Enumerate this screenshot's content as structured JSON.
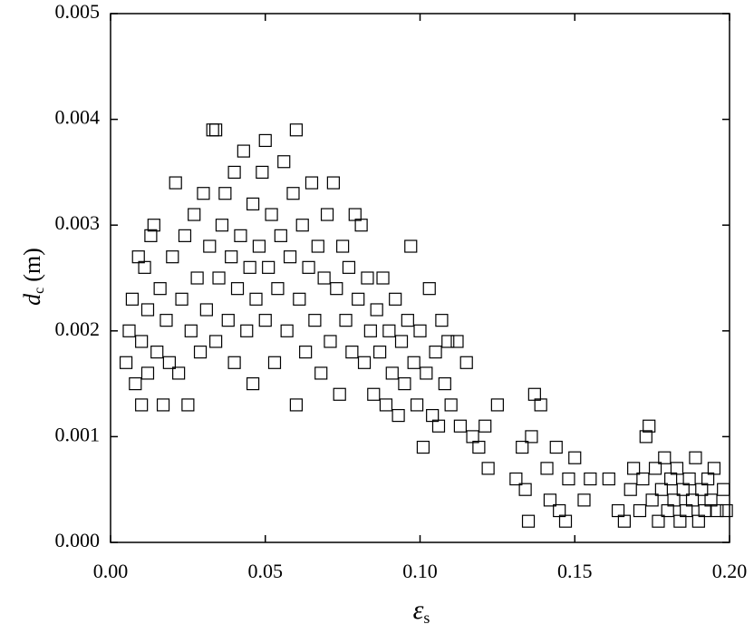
{
  "chart_data": {
    "type": "scatter",
    "xlabel": {
      "main": "ε",
      "sub": "s"
    },
    "ylabel": {
      "main": "d",
      "sub": "c",
      "unit": "(m)"
    },
    "xlim": [
      0,
      0.2
    ],
    "ylim": [
      0,
      0.005
    ],
    "xticks": [
      {
        "value": 0,
        "label": "0.00"
      },
      {
        "value": 0.05,
        "label": "0.05"
      },
      {
        "value": 0.1,
        "label": "0.10"
      },
      {
        "value": 0.15,
        "label": "0.15"
      },
      {
        "value": 0.2,
        "label": "0.20"
      }
    ],
    "yticks": [
      {
        "value": 0,
        "label": "0.000"
      },
      {
        "value": 0.001,
        "label": "0.001"
      },
      {
        "value": 0.002,
        "label": "0.002"
      },
      {
        "value": 0.003,
        "label": "0.003"
      },
      {
        "value": 0.004,
        "label": "0.004"
      },
      {
        "value": 0.005,
        "label": "0.005"
      }
    ],
    "marker_color": "#000000",
    "x": [
      0.005,
      0.006,
      0.007,
      0.008,
      0.009,
      0.01,
      0.01,
      0.011,
      0.012,
      0.012,
      0.013,
      0.014,
      0.015,
      0.016,
      0.017,
      0.018,
      0.019,
      0.02,
      0.021,
      0.022,
      0.023,
      0.024,
      0.025,
      0.026,
      0.027,
      0.028,
      0.029,
      0.03,
      0.031,
      0.032,
      0.033,
      0.034,
      0.034,
      0.035,
      0.036,
      0.037,
      0.038,
      0.039,
      0.04,
      0.04,
      0.041,
      0.042,
      0.043,
      0.044,
      0.045,
      0.046,
      0.046,
      0.047,
      0.048,
      0.049,
      0.05,
      0.05,
      0.051,
      0.052,
      0.053,
      0.054,
      0.055,
      0.056,
      0.057,
      0.058,
      0.059,
      0.06,
      0.06,
      0.061,
      0.062,
      0.063,
      0.064,
      0.065,
      0.066,
      0.067,
      0.068,
      0.069,
      0.07,
      0.071,
      0.072,
      0.073,
      0.074,
      0.075,
      0.076,
      0.077,
      0.078,
      0.079,
      0.08,
      0.081,
      0.082,
      0.083,
      0.084,
      0.085,
      0.086,
      0.087,
      0.088,
      0.089,
      0.09,
      0.091,
      0.092,
      0.093,
      0.094,
      0.095,
      0.096,
      0.097,
      0.098,
      0.099,
      0.1,
      0.101,
      0.102,
      0.103,
      0.104,
      0.105,
      0.106,
      0.107,
      0.108,
      0.109,
      0.11,
      0.112,
      0.113,
      0.115,
      0.117,
      0.119,
      0.121,
      0.122,
      0.125,
      0.131,
      0.133,
      0.134,
      0.135,
      0.136,
      0.137,
      0.139,
      0.141,
      0.142,
      0.144,
      0.145,
      0.147,
      0.148,
      0.15,
      0.153,
      0.155,
      0.161,
      0.164,
      0.166,
      0.168,
      0.169,
      0.171,
      0.172,
      0.173,
      0.174,
      0.175,
      0.176,
      0.177,
      0.178,
      0.179,
      0.18,
      0.181,
      0.182,
      0.183,
      0.184,
      0.185,
      0.186,
      0.187,
      0.188,
      0.189,
      0.19,
      0.191,
      0.192,
      0.193,
      0.194,
      0.195,
      0.196,
      0.198,
      0.199
    ],
    "values": [
      0.0017,
      0.002,
      0.0023,
      0.0015,
      0.0027,
      0.0013,
      0.0019,
      0.0026,
      0.0016,
      0.0022,
      0.0029,
      0.003,
      0.0018,
      0.0024,
      0.0013,
      0.0021,
      0.0017,
      0.0027,
      0.0034,
      0.0016,
      0.0023,
      0.0029,
      0.0013,
      0.002,
      0.0031,
      0.0025,
      0.0018,
      0.0033,
      0.0022,
      0.0028,
      0.0039,
      0.0039,
      0.0019,
      0.0025,
      0.003,
      0.0033,
      0.0021,
      0.0027,
      0.0035,
      0.0017,
      0.0024,
      0.0029,
      0.0037,
      0.002,
      0.0026,
      0.0032,
      0.0015,
      0.0023,
      0.0028,
      0.0035,
      0.0038,
      0.0021,
      0.0026,
      0.0031,
      0.0017,
      0.0024,
      0.0029,
      0.0036,
      0.002,
      0.0027,
      0.0033,
      0.0039,
      0.0013,
      0.0023,
      0.003,
      0.0018,
      0.0026,
      0.0034,
      0.0021,
      0.0028,
      0.0016,
      0.0025,
      0.0031,
      0.0019,
      0.0034,
      0.0024,
      0.0014,
      0.0028,
      0.0021,
      0.0026,
      0.0018,
      0.0031,
      0.0023,
      0.003,
      0.0017,
      0.0025,
      0.002,
      0.0014,
      0.0022,
      0.0018,
      0.0025,
      0.0013,
      0.002,
      0.0016,
      0.0023,
      0.0012,
      0.0019,
      0.0015,
      0.0021,
      0.0028,
      0.0017,
      0.0013,
      0.002,
      0.0009,
      0.0016,
      0.0024,
      0.0012,
      0.0018,
      0.0011,
      0.0021,
      0.0015,
      0.0019,
      0.0013,
      0.0019,
      0.0011,
      0.0017,
      0.001,
      0.0009,
      0.0011,
      0.0007,
      0.0013,
      0.0006,
      0.0009,
      0.0005,
      0.0002,
      0.001,
      0.0014,
      0.0013,
      0.0007,
      0.0004,
      0.0009,
      0.0003,
      0.0002,
      0.0006,
      0.0008,
      0.0004,
      0.0006,
      0.0006,
      0.0003,
      0.0002,
      0.0005,
      0.0007,
      0.0003,
      0.0006,
      0.001,
      0.0011,
      0.0004,
      0.0007,
      0.0002,
      0.0005,
      0.0008,
      0.0003,
      0.0006,
      0.0004,
      0.0007,
      0.0002,
      0.0005,
      0.0003,
      0.0006,
      0.0004,
      0.0008,
      0.0002,
      0.0005,
      0.0003,
      0.0006,
      0.0004,
      0.0007,
      0.0003,
      0.0005,
      0.0003
    ]
  }
}
